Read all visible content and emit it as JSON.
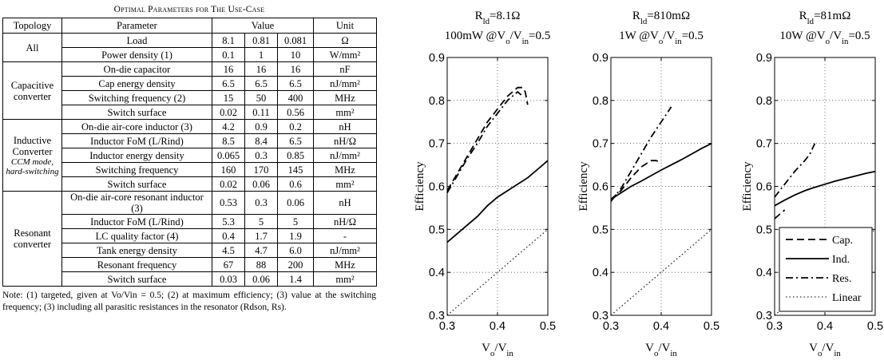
{
  "table": {
    "caption": "Optimal Parameters for The Use-Case",
    "headers": {
      "topology": "Topology",
      "parameter": "Parameter",
      "value": "Value",
      "unit": "Unit"
    },
    "groups": [
      {
        "topology": "All",
        "sub": "",
        "rows": [
          {
            "parameter": "Load",
            "v1": "8.1",
            "v2": "0.81",
            "v3": "0.081",
            "unit": "Ω"
          },
          {
            "parameter": "Power density (1)",
            "v1": "0.1",
            "v2": "1",
            "v3": "10",
            "unit": "W/mm²"
          }
        ]
      },
      {
        "topology": "Capacitive converter",
        "sub": "",
        "rows": [
          {
            "parameter": "On-die capacitor",
            "v1": "16",
            "v2": "16",
            "v3": "16",
            "unit": "nF"
          },
          {
            "parameter": "Cap energy density",
            "v1": "6.5",
            "v2": "6.5",
            "v3": "6.5",
            "unit": "nJ/mm²"
          },
          {
            "parameter": "Switching frequency (2)",
            "v1": "15",
            "v2": "50",
            "v3": "400",
            "unit": "MHz"
          },
          {
            "parameter": "Switch surface",
            "v1": "0.02",
            "v2": "0.11",
            "v3": "0.56",
            "unit": "mm²"
          }
        ]
      },
      {
        "topology": "Inductive Converter",
        "sub": "CCM mode, hard-switching",
        "rows": [
          {
            "parameter": "On-die air-core inductor (3)",
            "v1": "4.2",
            "v2": "0.9",
            "v3": "0.2",
            "unit": "nH"
          },
          {
            "parameter": "Inductor FoM (L/Rind)",
            "v1": "8.5",
            "v2": "8.4",
            "v3": "6.5",
            "unit": "nH/Ω"
          },
          {
            "parameter": "Inductor energy density",
            "v1": "0.065",
            "v2": "0.3",
            "v3": "0.85",
            "unit": "nJ/mm²"
          },
          {
            "parameter": "Switching frequency",
            "v1": "160",
            "v2": "170",
            "v3": "145",
            "unit": "MHz"
          },
          {
            "parameter": "Switch surface",
            "v1": "0.02",
            "v2": "0.06",
            "v3": "0.6",
            "unit": "mm²"
          }
        ]
      },
      {
        "topology": "Resonant converter",
        "sub": "",
        "rows": [
          {
            "parameter": "On-die air-core resonant inductor (3)",
            "v1": "0.53",
            "v2": "0.3",
            "v3": "0.06",
            "unit": "nH"
          },
          {
            "parameter": "Inductor FoM (L/Rind)",
            "v1": "5.3",
            "v2": "5",
            "v3": "5",
            "unit": "nH/Ω"
          },
          {
            "parameter": "LC quality factor (4)",
            "v1": "0.4",
            "v2": "1.7",
            "v3": "1.9",
            "unit": "-"
          },
          {
            "parameter": "Tank energy density",
            "v1": "4.5",
            "v2": "4.7",
            "v3": "6.0",
            "unit": "nJ/mm²"
          },
          {
            "parameter": "Resonant frequency",
            "v1": "67",
            "v2": "88",
            "v3": "200",
            "unit": "MHz"
          },
          {
            "parameter": "Switch surface",
            "v1": "0.03",
            "v2": "0.06",
            "v3": "1.4",
            "unit": "mm²"
          }
        ]
      }
    ],
    "note": "Note: (1) targeted, given at Vo/Vin = 0.5; (2) at maximum efficiency; (3) value at the switching frequency; (3) including all parasitic resistances in the resonator (Rdson, Rs)."
  },
  "chart_data": [
    {
      "type": "line",
      "title_line1": "Rld=8.1Ω",
      "title_line2": "100mW @Vo/Vin=0.5",
      "xlabel": "Vo/Vin",
      "ylabel": "Efficiency",
      "xlim": [
        0.3,
        0.5
      ],
      "ylim": [
        0.3,
        0.9
      ],
      "xticks": [
        "0.3",
        "0.4",
        "0.5"
      ],
      "yticks": [
        "0.3",
        "0.4",
        "0.5",
        "0.6",
        "0.7",
        "0.8",
        "0.9"
      ],
      "grid": true,
      "series": [
        {
          "name": "Cap.",
          "style": "dashed",
          "x": [
            0.3,
            0.32,
            0.34,
            0.36,
            0.38,
            0.4,
            0.42,
            0.43,
            0.44,
            0.45,
            0.455,
            0.46
          ],
          "y": [
            0.59,
            0.63,
            0.67,
            0.71,
            0.75,
            0.78,
            0.81,
            0.82,
            0.83,
            0.83,
            0.82,
            0.79
          ]
        },
        {
          "name": "Ind.",
          "style": "solid",
          "x": [
            0.3,
            0.32,
            0.34,
            0.36,
            0.38,
            0.4,
            0.42,
            0.44,
            0.46,
            0.48,
            0.5
          ],
          "y": [
            0.47,
            0.49,
            0.51,
            0.53,
            0.555,
            0.575,
            0.59,
            0.605,
            0.62,
            0.64,
            0.66
          ]
        },
        {
          "name": "Res.",
          "style": "dashdot",
          "x": [
            0.3,
            0.32,
            0.34,
            0.36,
            0.38,
            0.4,
            0.42,
            0.44,
            0.45
          ],
          "y": [
            0.585,
            0.625,
            0.665,
            0.7,
            0.74,
            0.77,
            0.8,
            0.82,
            0.81
          ]
        },
        {
          "name": "Linear",
          "style": "dotted",
          "x": [
            0.3,
            0.5
          ],
          "y": [
            0.3,
            0.5
          ]
        }
      ]
    },
    {
      "type": "line",
      "title_line1": "Rld=810mΩ",
      "title_line2": "1W @Vo/Vin=0.5",
      "xlabel": "Vo/Vin",
      "ylabel": "Efficiency",
      "xlim": [
        0.3,
        0.5
      ],
      "ylim": [
        0.3,
        0.9
      ],
      "xticks": [
        "0.3",
        "0.4",
        "0.5"
      ],
      "yticks": [
        "0.3",
        "0.4",
        "0.5",
        "0.6",
        "0.7",
        "0.8",
        "0.9"
      ],
      "grid": true,
      "series": [
        {
          "name": "Cap.",
          "style": "dashed",
          "x": [
            0.3,
            0.32,
            0.34,
            0.36,
            0.38,
            0.39,
            0.4
          ],
          "y": [
            0.57,
            0.59,
            0.62,
            0.645,
            0.66,
            0.66,
            0.655
          ]
        },
        {
          "name": "Ind.",
          "style": "solid",
          "x": [
            0.3,
            0.32,
            0.34,
            0.36,
            0.38,
            0.4,
            0.42,
            0.44,
            0.46,
            0.48,
            0.5
          ],
          "y": [
            0.57,
            0.585,
            0.6,
            0.612,
            0.625,
            0.638,
            0.65,
            0.662,
            0.675,
            0.688,
            0.7
          ]
        },
        {
          "name": "Res.",
          "style": "dashdot",
          "x": [
            0.3,
            0.32,
            0.34,
            0.36,
            0.38,
            0.4,
            0.42
          ],
          "y": [
            0.565,
            0.595,
            0.635,
            0.675,
            0.715,
            0.75,
            0.785
          ]
        },
        {
          "name": "Linear",
          "style": "dotted",
          "x": [
            0.3,
            0.5
          ],
          "y": [
            0.3,
            0.5
          ]
        }
      ]
    },
    {
      "type": "line",
      "title_line1": "Rld=81mΩ",
      "title_line2": "10W @Vo/Vin=0.5",
      "xlabel": "Vo/Vin",
      "ylabel": "Efficiency",
      "xlim": [
        0.3,
        0.5
      ],
      "ylim": [
        0.3,
        0.9
      ],
      "xticks": [
        "0.3",
        "0.4",
        "0.5"
      ],
      "yticks": [
        "0.3",
        "0.4",
        "0.5",
        "0.6",
        "0.7",
        "0.8",
        "0.9"
      ],
      "grid": true,
      "legend": "bottom-right",
      "series": [
        {
          "name": "Cap.",
          "style": "dashed",
          "x": [
            0.3,
            0.31,
            0.32
          ],
          "y": [
            0.525,
            0.535,
            0.545
          ]
        },
        {
          "name": "Ind.",
          "style": "solid",
          "x": [
            0.3,
            0.32,
            0.34,
            0.36,
            0.38,
            0.4,
            0.42,
            0.44,
            0.46,
            0.48,
            0.5
          ],
          "y": [
            0.555,
            0.568,
            0.58,
            0.59,
            0.598,
            0.605,
            0.612,
            0.618,
            0.624,
            0.63,
            0.635
          ]
        },
        {
          "name": "Res.",
          "style": "dashdot",
          "x": [
            0.3,
            0.32,
            0.34,
            0.36,
            0.37,
            0.38
          ],
          "y": [
            0.575,
            0.605,
            0.635,
            0.66,
            0.675,
            0.7
          ]
        },
        {
          "name": "Linear",
          "style": "dotted",
          "x": [
            0.3,
            0.5
          ],
          "y": [
            0.3,
            0.5
          ]
        }
      ]
    }
  ]
}
